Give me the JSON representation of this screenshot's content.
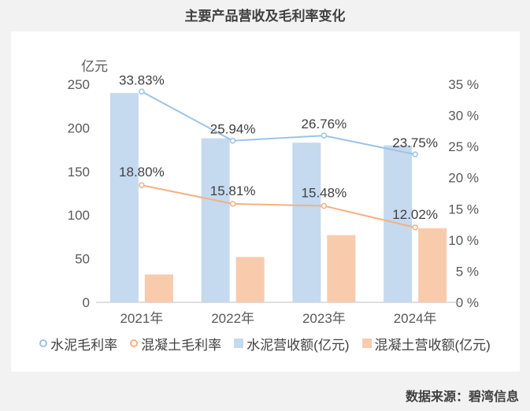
{
  "title": "主要产品营收及毛利率变化",
  "source": "数据来源：碧湾信息",
  "colors": {
    "cement_revenue": "#c5d9ef",
    "concrete_revenue": "#f8cbad",
    "cement_margin": "#9dc3e6",
    "concrete_margin": "#f4b183"
  },
  "chart_data": {
    "type": "bar",
    "categories": [
      "2021年",
      "2022年",
      "2023年",
      "2024年"
    ],
    "y_left_label": "亿元",
    "y_left_lim": [
      0,
      250
    ],
    "y_left_ticks": [
      "0",
      "50",
      "100",
      "150",
      "200",
      "250"
    ],
    "y_right_lim": [
      0,
      35
    ],
    "y_right_ticks": [
      "0 %",
      "5 %",
      "10 %",
      "15 %",
      "20 %",
      "25 %",
      "30 %",
      "35 %"
    ],
    "series": [
      {
        "name": "水泥营收额(亿元)",
        "type": "bar",
        "axis": "left",
        "values": [
          240,
          188,
          183,
          180
        ]
      },
      {
        "name": "混凝土营收额(亿元)",
        "type": "bar",
        "axis": "left",
        "values": [
          32,
          52,
          77,
          85
        ]
      },
      {
        "name": "水泥毛利率",
        "type": "line",
        "axis": "right",
        "values": [
          33.83,
          25.94,
          26.76,
          23.75
        ],
        "labels": [
          "33.83%",
          "25.94%",
          "26.76%",
          "23.75%"
        ]
      },
      {
        "name": "混凝土毛利率",
        "type": "line",
        "axis": "right",
        "values": [
          18.8,
          15.81,
          15.48,
          12.02
        ],
        "labels": [
          "18.80%",
          "15.81%",
          "15.48%",
          "12.02%"
        ]
      }
    ],
    "legend_position": "bottom",
    "grid": false
  }
}
